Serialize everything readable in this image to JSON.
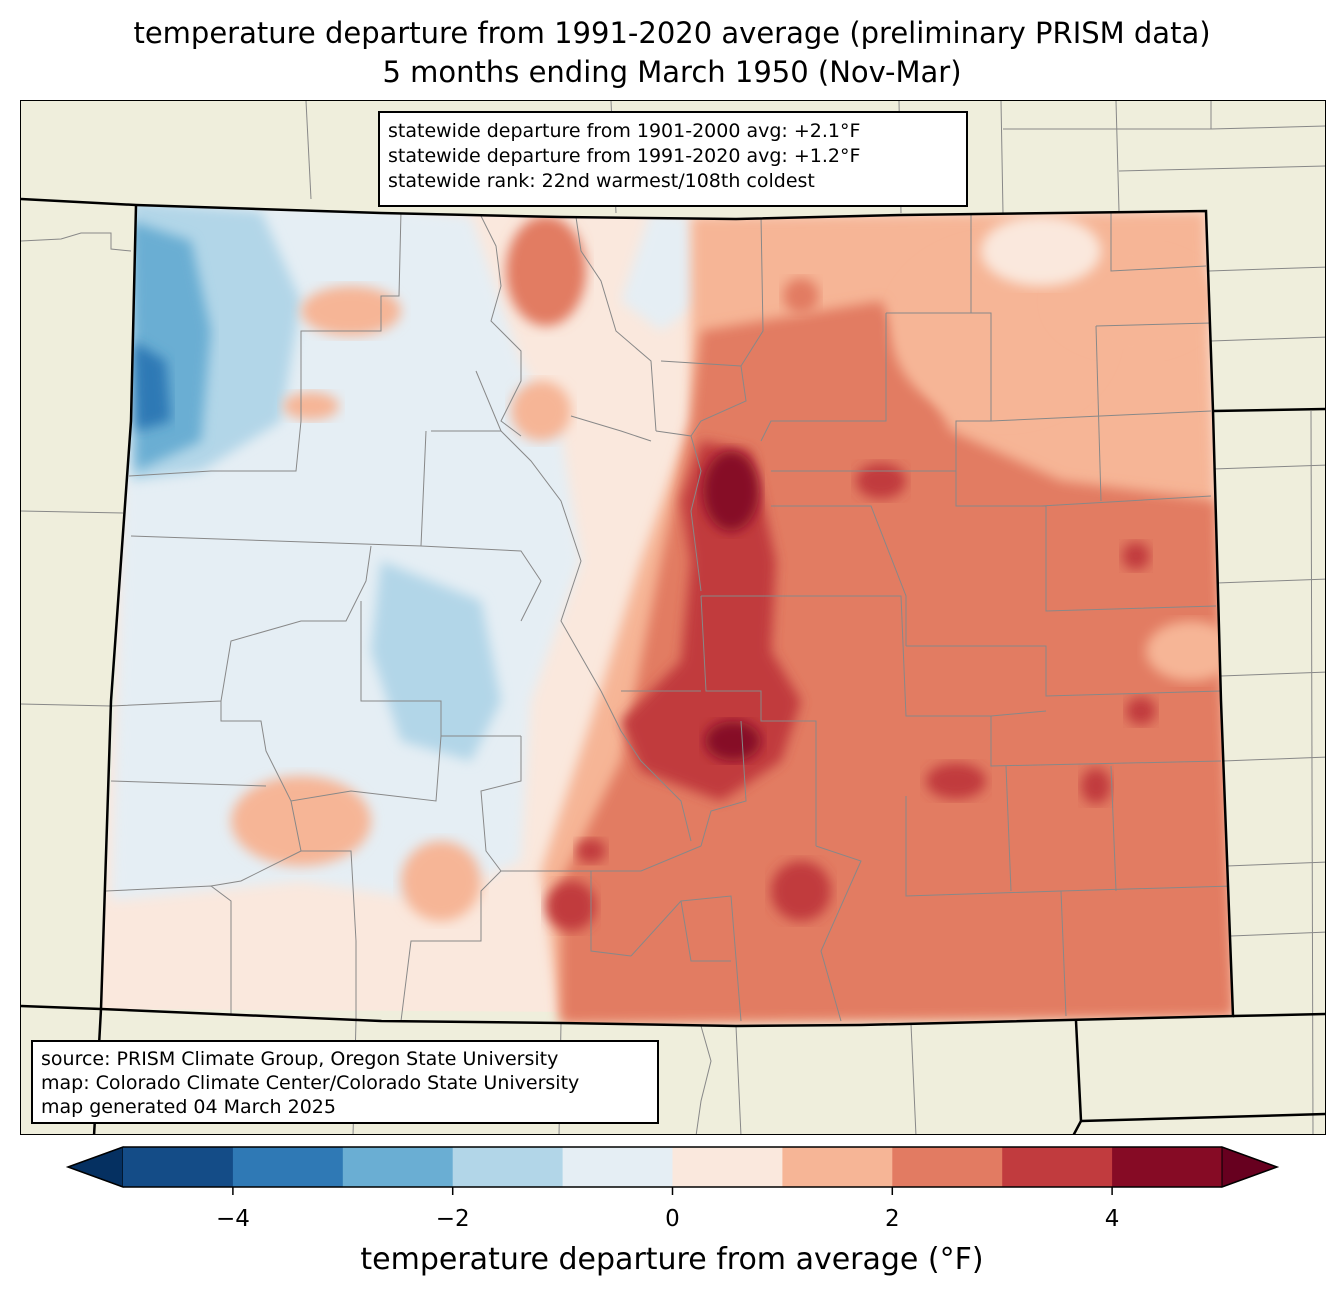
{
  "title_line1": "temperature departure from 1991-2020 average (preliminary PRISM data)",
  "title_line2": "5 months ending March 1950 (Nov-Mar)",
  "stats_box": {
    "line1": "statewide departure from 1901-2000 avg: +2.1°F",
    "line2": "statewide departure from 1991-2020 avg: +1.2°F",
    "line3": "statewide rank: 22nd warmest/108th coldest"
  },
  "source_box": {
    "line1": "source: PRISM Climate Group, Oregon State University",
    "line2": "map: Colorado Climate Center/Colorado State University",
    "line3": "map generated 04 March 2025"
  },
  "colorbar": {
    "label": "temperature departure from average (°F)",
    "levels": [
      -5,
      -4,
      -3,
      -2,
      -1,
      0,
      1,
      2,
      3,
      4,
      5
    ],
    "colors": [
      "#053061",
      "#144c87",
      "#2f79b5",
      "#6aaed3",
      "#b2d6e8",
      "#e5eef4",
      "#fae8dd",
      "#f6b596",
      "#e27b62",
      "#c13b3e",
      "#860b25",
      "#67001f"
    ],
    "ticks": [
      "−4",
      "−2",
      "0",
      "2",
      "4"
    ],
    "extend": "both"
  },
  "map_colors": {
    "land": "#efeedc",
    "state_border": "#000000",
    "county_border": "#888888"
  }
}
